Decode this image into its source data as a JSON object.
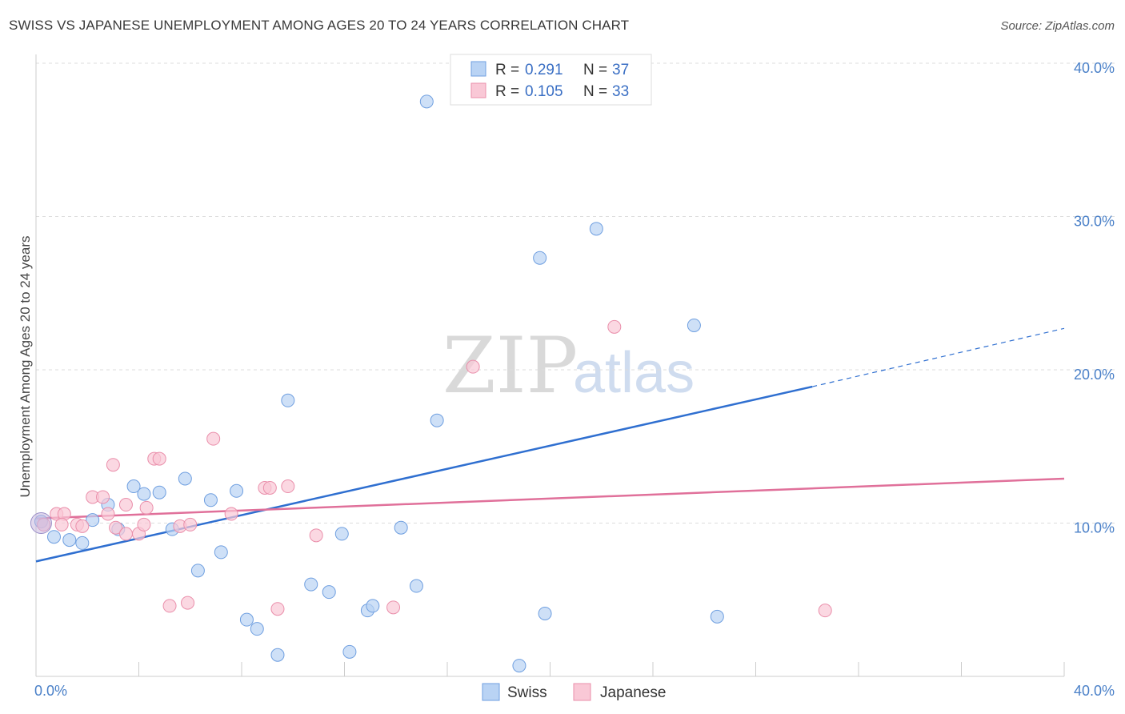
{
  "title": "SWISS VS JAPANESE UNEMPLOYMENT AMONG AGES 20 TO 24 YEARS CORRELATION CHART",
  "source": "Source: ZipAtlas.com",
  "watermark": {
    "zip": "ZIP",
    "atlas": "atlas"
  },
  "legend": {
    "r_label": "R =",
    "n_label": "N =",
    "items": [
      {
        "r": "0.291",
        "n": "37",
        "fill": "#b9d3f4",
        "stroke": "#6f9fe0"
      },
      {
        "r": "0.105",
        "n": "33",
        "fill": "#f9c8d6",
        "stroke": "#ea8fab"
      }
    ]
  },
  "chart_data": {
    "type": "scatter",
    "title": "SWISS VS JAPANESE UNEMPLOYMENT AMONG AGES 20 TO 24 YEARS CORRELATION CHART",
    "xlabel": "",
    "ylabel": "Unemployment Among Ages 20 to 24 years",
    "xlim": [
      0,
      40
    ],
    "ylim": [
      0,
      40
    ],
    "x_tick_labels": [
      "0.0%",
      "40.0%"
    ],
    "y_tick_labels": [
      "10.0%",
      "20.0%",
      "30.0%",
      "40.0%"
    ],
    "y_ticks": [
      10,
      20,
      30,
      40
    ],
    "grid": true,
    "legend_position": "top-center",
    "series": [
      {
        "name": "Swiss",
        "color": "#6f9fe0",
        "fill": "#b9d3f4",
        "trend_color": "#2f6fd0",
        "trend": {
          "x0": 0,
          "y0": 7.5,
          "x1": 30.2,
          "y1": 18.9,
          "dash_to_x": 40,
          "dash_to_y": 22.7
        },
        "points": [
          [
            0.2,
            10.1
          ],
          [
            0.7,
            9.1
          ],
          [
            1.3,
            8.9
          ],
          [
            1.8,
            8.7
          ],
          [
            2.2,
            10.2
          ],
          [
            2.8,
            11.2
          ],
          [
            3.2,
            9.6
          ],
          [
            3.8,
            12.4
          ],
          [
            4.2,
            11.9
          ],
          [
            4.8,
            12.0
          ],
          [
            5.3,
            9.6
          ],
          [
            5.8,
            12.9
          ],
          [
            6.3,
            6.9
          ],
          [
            6.8,
            11.5
          ],
          [
            7.2,
            8.1
          ],
          [
            7.8,
            12.1
          ],
          [
            8.2,
            3.7
          ],
          [
            8.6,
            3.1
          ],
          [
            9.4,
            1.4
          ],
          [
            9.8,
            18.0
          ],
          [
            10.7,
            6.0
          ],
          [
            11.4,
            5.5
          ],
          [
            11.9,
            9.3
          ],
          [
            12.2,
            1.6
          ],
          [
            12.9,
            4.3
          ],
          [
            13.1,
            4.6
          ],
          [
            14.2,
            9.7
          ],
          [
            14.8,
            5.9
          ],
          [
            15.2,
            37.5
          ],
          [
            15.6,
            16.7
          ],
          [
            18.8,
            0.7
          ],
          [
            19.6,
            27.3
          ],
          [
            19.8,
            4.1
          ],
          [
            21.8,
            29.2
          ],
          [
            25.6,
            22.9
          ],
          [
            26.5,
            3.9
          ],
          [
            18.6,
            40.0
          ]
        ]
      },
      {
        "name": "Japanese",
        "color": "#ea8fab",
        "fill": "#f9c8d6",
        "trend_color": "#e0709a",
        "trend": {
          "x0": 0,
          "y0": 10.3,
          "x1": 40,
          "y1": 12.9
        },
        "points": [
          [
            0.3,
            9.9
          ],
          [
            0.8,
            10.6
          ],
          [
            1.1,
            10.6
          ],
          [
            1.6,
            9.9
          ],
          [
            1.8,
            9.8
          ],
          [
            2.2,
            11.7
          ],
          [
            2.6,
            11.7
          ],
          [
            2.8,
            10.6
          ],
          [
            3.1,
            9.7
          ],
          [
            3.0,
            13.8
          ],
          [
            3.5,
            9.3
          ],
          [
            3.5,
            11.2
          ],
          [
            4.0,
            9.3
          ],
          [
            4.2,
            9.9
          ],
          [
            4.3,
            11.0
          ],
          [
            4.6,
            14.2
          ],
          [
            4.8,
            14.2
          ],
          [
            5.2,
            4.6
          ],
          [
            5.6,
            9.8
          ],
          [
            5.9,
            4.8
          ],
          [
            6.0,
            9.9
          ],
          [
            6.9,
            15.5
          ],
          [
            7.6,
            10.6
          ],
          [
            8.9,
            12.3
          ],
          [
            9.1,
            12.3
          ],
          [
            9.4,
            4.4
          ],
          [
            9.8,
            12.4
          ],
          [
            10.9,
            9.2
          ],
          [
            13.9,
            4.5
          ],
          [
            17.0,
            20.2
          ],
          [
            22.5,
            22.8
          ],
          [
            30.7,
            4.3
          ],
          [
            1.0,
            9.9
          ]
        ]
      }
    ]
  },
  "bottom_legend": [
    {
      "label": "Swiss",
      "fill": "#b9d3f4",
      "stroke": "#6f9fe0"
    },
    {
      "label": "Japanese",
      "fill": "#f9c8d6",
      "stroke": "#ea8fab"
    }
  ]
}
